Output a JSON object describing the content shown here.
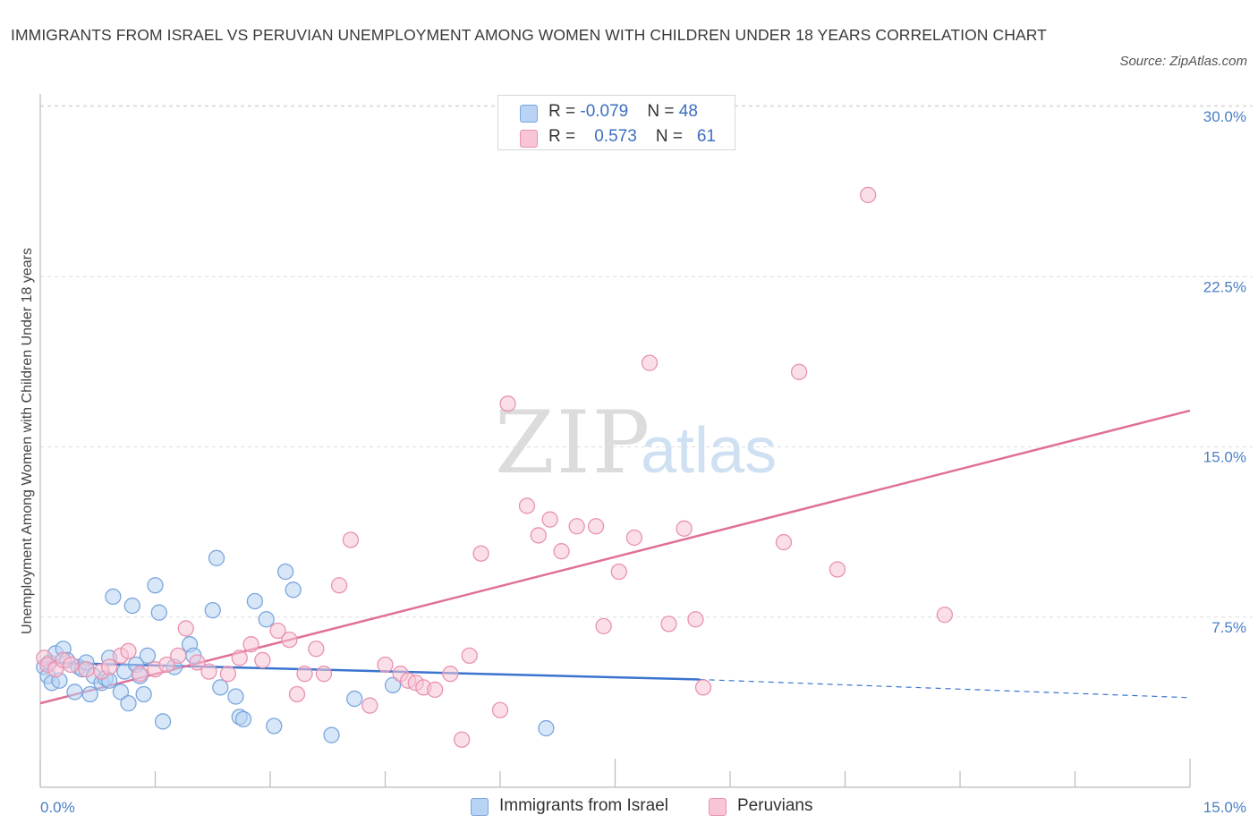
{
  "title": "IMMIGRANTS FROM ISRAEL VS PERUVIAN UNEMPLOYMENT AMONG WOMEN WITH CHILDREN UNDER 18 YEARS CORRELATION CHART",
  "source": "Source: ZipAtlas.com",
  "watermark": {
    "zip": "ZIP",
    "atlas": "atlas"
  },
  "colors": {
    "israel_fill": "#b8d3f3",
    "israel_stroke": "#7aa6dd",
    "israel_line": "#3a74cf",
    "peru_fill": "#f7c5d6",
    "peru_stroke": "#e892b1",
    "peru_line": "#e0709a",
    "tick_label": "#4a7fc1",
    "grid": "#dddddd"
  },
  "legend": {
    "rows": [
      {
        "r_label": "R = ",
        "r_value": "-0.079",
        "n_label": "N = ",
        "n_value": "48"
      },
      {
        "r_label": "R = ",
        "r_value": "0.573",
        "n_label": "N = ",
        "n_value": "61"
      }
    ]
  },
  "chart_data": {
    "type": "scatter",
    "title": "IMMIGRANTS FROM ISRAEL VS PERUVIAN UNEMPLOYMENT AMONG WOMEN WITH CHILDREN UNDER 18 YEARS CORRELATION CHART",
    "xlabel": "",
    "ylabel": "Unemployment Among Women with Children Under 18 years",
    "xlim": [
      0,
      15
    ],
    "ylim": [
      0,
      30
    ],
    "x_tick_labels": [
      "0.0%",
      "15.0%"
    ],
    "y_ticks": [
      7.5,
      15.0,
      22.5,
      30.0
    ],
    "y_tick_labels": [
      "7.5%",
      "15.0%",
      "22.5%",
      "30.0%"
    ],
    "grid": true,
    "legend_position": "bottom",
    "series": [
      {
        "name": "Immigrants from Israel",
        "points": [
          [
            0.05,
            5.3
          ],
          [
            0.1,
            4.9
          ],
          [
            0.12,
            5.5
          ],
          [
            0.15,
            4.6
          ],
          [
            0.2,
            5.9
          ],
          [
            0.25,
            4.7
          ],
          [
            0.3,
            6.1
          ],
          [
            0.35,
            5.6
          ],
          [
            0.45,
            4.2
          ],
          [
            0.5,
            5.3
          ],
          [
            0.55,
            5.2
          ],
          [
            0.65,
            4.1
          ],
          [
            0.7,
            4.9
          ],
          [
            0.8,
            4.6
          ],
          [
            0.85,
            4.8
          ],
          [
            0.9,
            5.7
          ],
          [
            0.95,
            8.4
          ],
          [
            1.05,
            4.2
          ],
          [
            1.1,
            5.1
          ],
          [
            1.2,
            8.0
          ],
          [
            1.25,
            5.4
          ],
          [
            1.35,
            4.1
          ],
          [
            1.4,
            5.8
          ],
          [
            1.5,
            8.9
          ],
          [
            1.6,
            2.9
          ],
          [
            1.75,
            5.3
          ],
          [
            1.95,
            6.3
          ],
          [
            2.3,
            10.1
          ],
          [
            2.35,
            4.4
          ],
          [
            2.6,
            3.1
          ],
          [
            2.8,
            8.2
          ],
          [
            2.95,
            7.4
          ],
          [
            3.2,
            9.5
          ],
          [
            3.3,
            8.7
          ],
          [
            3.8,
            2.3
          ],
          [
            4.1,
            3.9
          ],
          [
            4.6,
            4.5
          ],
          [
            6.6,
            2.6
          ],
          [
            0.6,
            5.5
          ],
          [
            0.9,
            4.7
          ],
          [
            1.15,
            3.7
          ],
          [
            1.3,
            4.9
          ],
          [
            1.55,
            7.7
          ],
          [
            2.0,
            5.8
          ],
          [
            2.25,
            7.8
          ],
          [
            2.55,
            4.0
          ],
          [
            2.65,
            3.0
          ],
          [
            3.05,
            2.7
          ]
        ]
      },
      {
        "name": "Peruvians",
        "points": [
          [
            0.05,
            5.7
          ],
          [
            0.1,
            5.4
          ],
          [
            0.2,
            5.2
          ],
          [
            0.3,
            5.6
          ],
          [
            0.4,
            5.4
          ],
          [
            0.6,
            5.2
          ],
          [
            0.8,
            5.1
          ],
          [
            0.9,
            5.3
          ],
          [
            1.05,
            5.8
          ],
          [
            1.15,
            6.0
          ],
          [
            1.3,
            5.0
          ],
          [
            1.5,
            5.2
          ],
          [
            1.65,
            5.4
          ],
          [
            1.8,
            5.8
          ],
          [
            1.9,
            7.0
          ],
          [
            2.05,
            5.5
          ],
          [
            2.2,
            5.1
          ],
          [
            2.45,
            5.0
          ],
          [
            2.6,
            5.7
          ],
          [
            2.75,
            6.3
          ],
          [
            2.9,
            5.6
          ],
          [
            3.1,
            6.9
          ],
          [
            3.25,
            6.5
          ],
          [
            3.35,
            4.1
          ],
          [
            3.45,
            5.0
          ],
          [
            3.6,
            6.1
          ],
          [
            3.7,
            5.0
          ],
          [
            3.9,
            8.9
          ],
          [
            4.05,
            10.9
          ],
          [
            4.3,
            3.6
          ],
          [
            4.5,
            5.4
          ],
          [
            4.7,
            5.0
          ],
          [
            4.8,
            4.7
          ],
          [
            4.9,
            4.6
          ],
          [
            5.0,
            4.4
          ],
          [
            5.15,
            4.3
          ],
          [
            5.35,
            5.0
          ],
          [
            5.5,
            2.1
          ],
          [
            5.6,
            5.8
          ],
          [
            5.75,
            10.3
          ],
          [
            6.0,
            3.4
          ],
          [
            6.1,
            16.9
          ],
          [
            6.35,
            12.4
          ],
          [
            6.5,
            11.1
          ],
          [
            6.65,
            11.8
          ],
          [
            6.8,
            10.4
          ],
          [
            7.0,
            11.5
          ],
          [
            7.25,
            11.5
          ],
          [
            7.35,
            7.1
          ],
          [
            7.55,
            9.5
          ],
          [
            7.75,
            11.0
          ],
          [
            7.95,
            18.7
          ],
          [
            8.2,
            7.2
          ],
          [
            8.4,
            11.4
          ],
          [
            8.55,
            7.4
          ],
          [
            8.65,
            4.4
          ],
          [
            9.7,
            10.8
          ],
          [
            9.9,
            18.3
          ],
          [
            10.4,
            9.6
          ],
          [
            10.8,
            26.1
          ],
          [
            11.8,
            7.6
          ]
        ]
      }
    ],
    "trend_lines": [
      {
        "series": "Immigrants from Israel",
        "from": [
          0.0,
          5.5
        ],
        "to": [
          8.6,
          4.75
        ],
        "dashed_to": [
          15.0,
          3.95
        ]
      },
      {
        "series": "Peruvians",
        "from": [
          0.0,
          3.7
        ],
        "to": [
          15.0,
          16.6
        ]
      }
    ]
  },
  "bottom_legend": [
    {
      "label": "Immigrants from Israel"
    },
    {
      "label": "Peruvians"
    }
  ]
}
